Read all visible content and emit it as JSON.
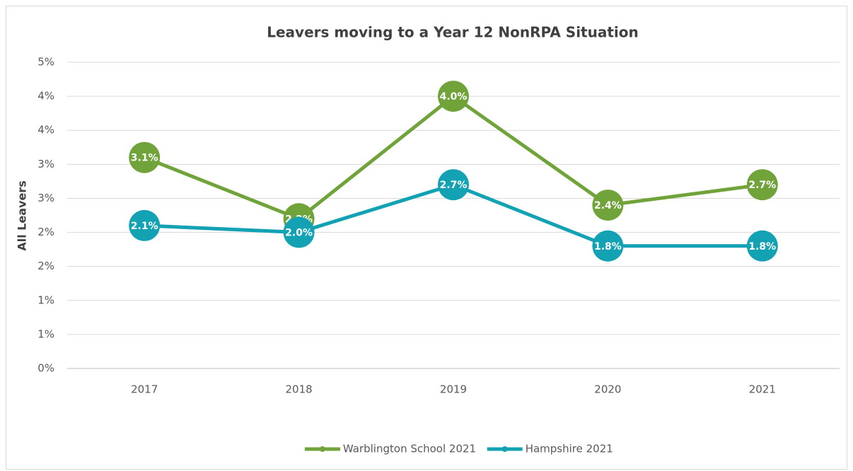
{
  "chart_data": {
    "type": "line",
    "title": "Leavers moving to a Year 12 NonRPA Situation",
    "y_label": "All Leavers",
    "categories": [
      "2017",
      "2018",
      "2019",
      "2020",
      "2021"
    ],
    "series": [
      {
        "name": "Warblington School 2021",
        "color": "#70a33a",
        "values": [
          3.1,
          2.2,
          4.0,
          2.4,
          2.7
        ],
        "value_labels": [
          "3.1%",
          "2.2%",
          "4.0%",
          "2.4%",
          "2.7%"
        ]
      },
      {
        "name": "Hampshire 2021",
        "color": "#12a2b4",
        "values": [
          2.1,
          2.0,
          2.7,
          1.8,
          1.8
        ],
        "value_labels": [
          "2.1%",
          "2.0%",
          "2.7%",
          "1.8%",
          "1.8%"
        ]
      }
    ],
    "ylim": [
      0,
      4.5
    ],
    "yticks": [
      {
        "value": 0,
        "label": "0%"
      },
      {
        "value": 0.5,
        "label": "1%"
      },
      {
        "value": 1,
        "label": "1%"
      },
      {
        "value": 1.5,
        "label": "2%"
      },
      {
        "value": 2,
        "label": "2%"
      },
      {
        "value": 2.5,
        "label": "3%"
      },
      {
        "value": 3,
        "label": "3%"
      },
      {
        "value": 3.5,
        "label": "4%"
      },
      {
        "value": 4,
        "label": "4%"
      },
      {
        "value": 4.5,
        "label": "5%"
      }
    ],
    "grid": true,
    "legend": "bottom"
  }
}
